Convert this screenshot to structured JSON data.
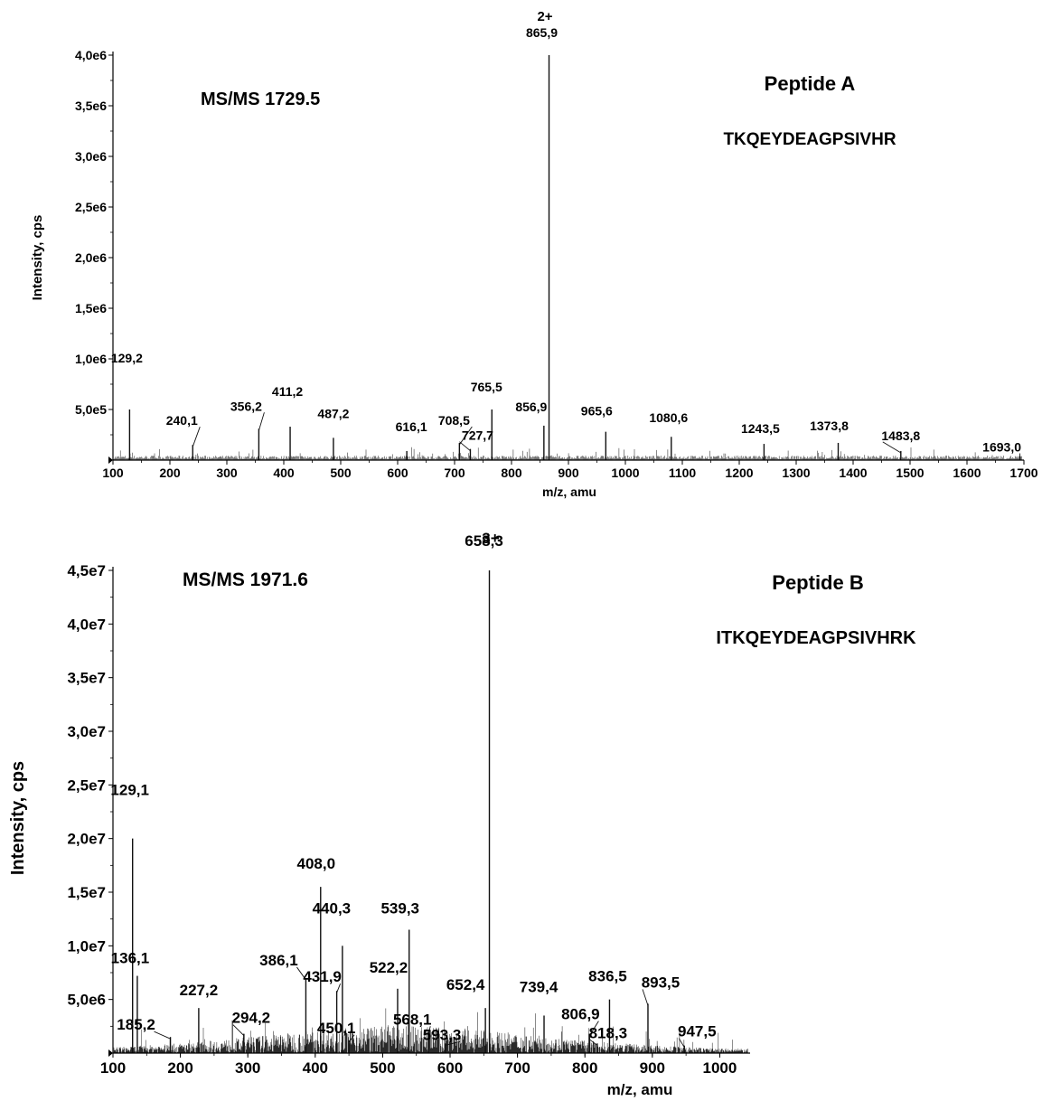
{
  "chart_data": [
    {
      "type": "bar",
      "title": "Peptide A",
      "subtitle": "TKQEYDEAGPSIVHR",
      "annotation": "MS/MS 1729.5",
      "charge_label": "2+",
      "xlabel": "m/z, amu",
      "ylabel": "Intensity, cps",
      "xlim": [
        100,
        1700
      ],
      "ylim": [
        0,
        4000000
      ],
      "x_ticks": [
        "100",
        "200",
        "300",
        "400",
        "500",
        "600",
        "700",
        "800",
        "900",
        "1000",
        "1100",
        "1200",
        "1300",
        "1400",
        "1500",
        "1600",
        "1700"
      ],
      "y_ticks": [
        "5,0e5",
        "1,0e6",
        "1,5e6",
        "2,0e6",
        "2,5e6",
        "3,0e6",
        "3,5e6",
        "4,0e6"
      ],
      "peaks": [
        {
          "x": 129.2,
          "y": 500000,
          "label": "129,2"
        },
        {
          "x": 240.1,
          "y": 150000,
          "label": "240,1"
        },
        {
          "x": 356.2,
          "y": 310000,
          "label": "356,2"
        },
        {
          "x": 411.2,
          "y": 330000,
          "label": "411,2"
        },
        {
          "x": 487.2,
          "y": 220000,
          "label": "487,2"
        },
        {
          "x": 616.1,
          "y": 90000,
          "label": "616,1"
        },
        {
          "x": 708.5,
          "y": 170000,
          "label": "708,5"
        },
        {
          "x": 727.7,
          "y": 110000,
          "label": "727,7"
        },
        {
          "x": 765.5,
          "y": 500000,
          "label": "765,5"
        },
        {
          "x": 856.9,
          "y": 340000,
          "label": "856,9"
        },
        {
          "x": 865.9,
          "y": 4000000,
          "label": "865,9"
        },
        {
          "x": 965.6,
          "y": 280000,
          "label": "965,6"
        },
        {
          "x": 1080.6,
          "y": 230000,
          "label": "1080,6"
        },
        {
          "x": 1243.5,
          "y": 160000,
          "label": "1243,5"
        },
        {
          "x": 1373.8,
          "y": 170000,
          "label": "1373,8"
        },
        {
          "x": 1483.8,
          "y": 90000,
          "label": "1483,8"
        },
        {
          "x": 1693.0,
          "y": 40000,
          "label": "1693,0"
        }
      ]
    },
    {
      "type": "bar",
      "title": "Peptide B",
      "subtitle": "ITKQEYDEAGPSIVHRK",
      "annotation": "MS/MS 1971.6",
      "charge_label": "3+",
      "xlabel": "m/z, amu",
      "ylabel": "Intensity, cps",
      "xlim": [
        100,
        1045
      ],
      "ylim": [
        0,
        45000000
      ],
      "x_ticks": [
        "100",
        "200",
        "300",
        "400",
        "500",
        "600",
        "700",
        "800",
        "900",
        "1000"
      ],
      "y_ticks": [
        "5,0e6",
        "1,0e7",
        "1,5e7",
        "2,0e7",
        "2,5e7",
        "3,0e7",
        "3,5e7",
        "4,0e7",
        "4,5e7"
      ],
      "peaks": [
        {
          "x": 129.1,
          "y": 20000000,
          "label": "129,1"
        },
        {
          "x": 136.1,
          "y": 7200000,
          "label": "136,1"
        },
        {
          "x": 185.2,
          "y": 1500000,
          "label": "185,2"
        },
        {
          "x": 227.2,
          "y": 4200000,
          "label": "227,2"
        },
        {
          "x": 294.2,
          "y": 1800000,
          "label": "294,2"
        },
        {
          "x": 386.1,
          "y": 7000000,
          "label": "386,1"
        },
        {
          "x": 408.0,
          "y": 15500000,
          "label": "408,0"
        },
        {
          "x": 431.9,
          "y": 5800000,
          "label": "431,9"
        },
        {
          "x": 440.3,
          "y": 10000000,
          "label": "440,3"
        },
        {
          "x": 450.1,
          "y": 1200000,
          "label": "450,1"
        },
        {
          "x": 522.2,
          "y": 6000000,
          "label": "522,2"
        },
        {
          "x": 539.3,
          "y": 11500000,
          "label": "539,3"
        },
        {
          "x": 568.1,
          "y": 2000000,
          "label": "568,1"
        },
        {
          "x": 593.3,
          "y": 900000,
          "label": "593,3"
        },
        {
          "x": 652.4,
          "y": 4200000,
          "label": "652,4"
        },
        {
          "x": 658.3,
          "y": 45000000,
          "label": "658,3"
        },
        {
          "x": 739.4,
          "y": 3500000,
          "label": "739,4"
        },
        {
          "x": 806.9,
          "y": 1800000,
          "label": "806,9"
        },
        {
          "x": 818.3,
          "y": 900000,
          "label": "818,3"
        },
        {
          "x": 836.5,
          "y": 5000000,
          "label": "836,5"
        },
        {
          "x": 893.5,
          "y": 4600000,
          "label": "893,5"
        },
        {
          "x": 947.5,
          "y": 700000,
          "label": "947,5"
        }
      ]
    }
  ]
}
